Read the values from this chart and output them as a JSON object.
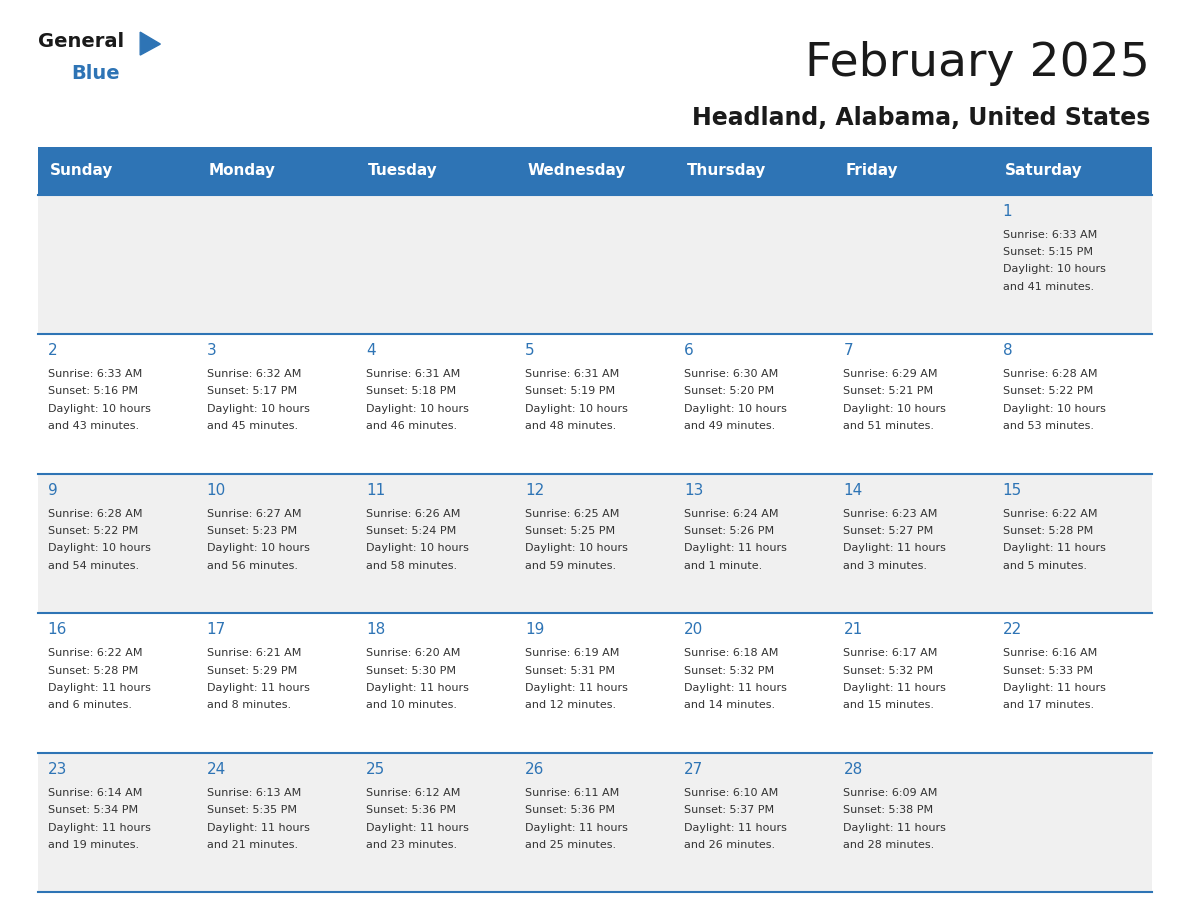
{
  "title": "February 2025",
  "subtitle": "Headland, Alabama, United States",
  "header_bg": "#2e74b5",
  "header_text_color": "#ffffff",
  "day_names": [
    "Sunday",
    "Monday",
    "Tuesday",
    "Wednesday",
    "Thursday",
    "Friday",
    "Saturday"
  ],
  "bg_color": "#ffffff",
  "row_alt_color": "#f0f0f0",
  "cell_text_color": "#333333",
  "date_text_color": "#2e74b5",
  "divider_color": "#2e74b5",
  "weeks": [
    [
      null,
      null,
      null,
      null,
      null,
      null,
      {
        "day": 1,
        "sunrise": "6:33 AM",
        "sunset": "5:15 PM",
        "daylight": "10 hours and 41 minutes."
      }
    ],
    [
      {
        "day": 2,
        "sunrise": "6:33 AM",
        "sunset": "5:16 PM",
        "daylight": "10 hours and 43 minutes."
      },
      {
        "day": 3,
        "sunrise": "6:32 AM",
        "sunset": "5:17 PM",
        "daylight": "10 hours and 45 minutes."
      },
      {
        "day": 4,
        "sunrise": "6:31 AM",
        "sunset": "5:18 PM",
        "daylight": "10 hours and 46 minutes."
      },
      {
        "day": 5,
        "sunrise": "6:31 AM",
        "sunset": "5:19 PM",
        "daylight": "10 hours and 48 minutes."
      },
      {
        "day": 6,
        "sunrise": "6:30 AM",
        "sunset": "5:20 PM",
        "daylight": "10 hours and 49 minutes."
      },
      {
        "day": 7,
        "sunrise": "6:29 AM",
        "sunset": "5:21 PM",
        "daylight": "10 hours and 51 minutes."
      },
      {
        "day": 8,
        "sunrise": "6:28 AM",
        "sunset": "5:22 PM",
        "daylight": "10 hours and 53 minutes."
      }
    ],
    [
      {
        "day": 9,
        "sunrise": "6:28 AM",
        "sunset": "5:22 PM",
        "daylight": "10 hours and 54 minutes."
      },
      {
        "day": 10,
        "sunrise": "6:27 AM",
        "sunset": "5:23 PM",
        "daylight": "10 hours and 56 minutes."
      },
      {
        "day": 11,
        "sunrise": "6:26 AM",
        "sunset": "5:24 PM",
        "daylight": "10 hours and 58 minutes."
      },
      {
        "day": 12,
        "sunrise": "6:25 AM",
        "sunset": "5:25 PM",
        "daylight": "10 hours and 59 minutes."
      },
      {
        "day": 13,
        "sunrise": "6:24 AM",
        "sunset": "5:26 PM",
        "daylight": "11 hours and 1 minute."
      },
      {
        "day": 14,
        "sunrise": "6:23 AM",
        "sunset": "5:27 PM",
        "daylight": "11 hours and 3 minutes."
      },
      {
        "day": 15,
        "sunrise": "6:22 AM",
        "sunset": "5:28 PM",
        "daylight": "11 hours and 5 minutes."
      }
    ],
    [
      {
        "day": 16,
        "sunrise": "6:22 AM",
        "sunset": "5:28 PM",
        "daylight": "11 hours and 6 minutes."
      },
      {
        "day": 17,
        "sunrise": "6:21 AM",
        "sunset": "5:29 PM",
        "daylight": "11 hours and 8 minutes."
      },
      {
        "day": 18,
        "sunrise": "6:20 AM",
        "sunset": "5:30 PM",
        "daylight": "11 hours and 10 minutes."
      },
      {
        "day": 19,
        "sunrise": "6:19 AM",
        "sunset": "5:31 PM",
        "daylight": "11 hours and 12 minutes."
      },
      {
        "day": 20,
        "sunrise": "6:18 AM",
        "sunset": "5:32 PM",
        "daylight": "11 hours and 14 minutes."
      },
      {
        "day": 21,
        "sunrise": "6:17 AM",
        "sunset": "5:32 PM",
        "daylight": "11 hours and 15 minutes."
      },
      {
        "day": 22,
        "sunrise": "6:16 AM",
        "sunset": "5:33 PM",
        "daylight": "11 hours and 17 minutes."
      }
    ],
    [
      {
        "day": 23,
        "sunrise": "6:14 AM",
        "sunset": "5:34 PM",
        "daylight": "11 hours and 19 minutes."
      },
      {
        "day": 24,
        "sunrise": "6:13 AM",
        "sunset": "5:35 PM",
        "daylight": "11 hours and 21 minutes."
      },
      {
        "day": 25,
        "sunrise": "6:12 AM",
        "sunset": "5:36 PM",
        "daylight": "11 hours and 23 minutes."
      },
      {
        "day": 26,
        "sunrise": "6:11 AM",
        "sunset": "5:36 PM",
        "daylight": "11 hours and 25 minutes."
      },
      {
        "day": 27,
        "sunrise": "6:10 AM",
        "sunset": "5:37 PM",
        "daylight": "11 hours and 26 minutes."
      },
      {
        "day": 28,
        "sunrise": "6:09 AM",
        "sunset": "5:38 PM",
        "daylight": "11 hours and 28 minutes."
      },
      null
    ]
  ]
}
